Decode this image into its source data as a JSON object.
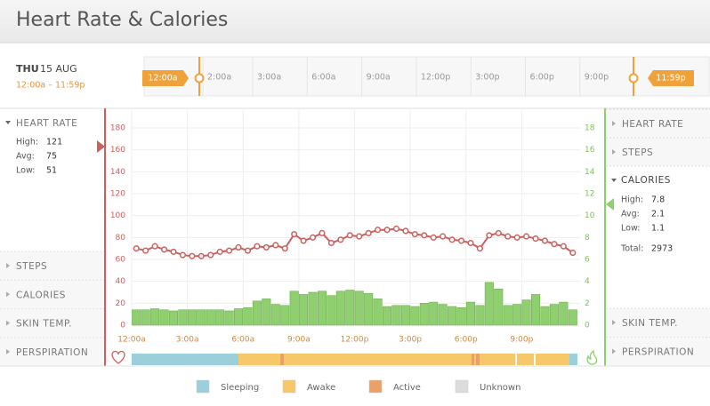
{
  "header": {
    "title": "Heart Rate & Calories"
  },
  "date": {
    "day": "THU",
    "date": "15 AUG",
    "range": "12:00a – 11:59p"
  },
  "timeline": {
    "start_handle": "12:00a",
    "end_handle": "11:59p",
    "labels": [
      "2:00a",
      "3:00a",
      "6:00a",
      "9:00a",
      "12:00p",
      "3:00p",
      "6:00p",
      "9:00p"
    ]
  },
  "left_panel": {
    "open": {
      "title": "HEART RATE",
      "stats": [
        {
          "label": "High:",
          "value": 121
        },
        {
          "label": "Avg:",
          "value": 75
        },
        {
          "label": "Low:",
          "value": 51
        }
      ]
    },
    "collapsed": [
      "STEPS",
      "CALORIES",
      "SKIN TEMP.",
      "PERSPIRATION"
    ]
  },
  "right_panel": {
    "collapsed_top": [
      "HEART RATE",
      "STEPS"
    ],
    "open": {
      "title": "CALORIES",
      "stats": [
        {
          "label": "High:",
          "value": 7.8
        },
        {
          "label": "Avg:",
          "value": 2.1
        },
        {
          "label": "Low:",
          "value": 1.1
        }
      ],
      "total_label": "Total:",
      "total": 2973
    },
    "collapsed_bottom": [
      "SKIN TEMP.",
      "PERSPIRATION"
    ]
  },
  "chart_data": {
    "type": "combo",
    "categories": [
      "12:00a",
      null,
      null,
      null,
      null,
      null,
      "3:00a",
      null,
      null,
      null,
      null,
      null,
      "6:00a",
      null,
      null,
      null,
      null,
      null,
      "9:00a",
      null,
      null,
      null,
      null,
      null,
      "12:00p",
      null,
      null,
      null,
      null,
      null,
      "3:00p",
      null,
      null,
      null,
      null,
      null,
      "6:00p",
      null,
      null,
      null,
      null,
      null,
      "9:00p",
      null,
      null,
      null,
      null,
      null
    ],
    "series": [
      {
        "color": "#c9605e",
        "axis": "y",
        "values": [
          70,
          68,
          72,
          69,
          67,
          64,
          63,
          63,
          64,
          67,
          68,
          71,
          68,
          72,
          71,
          73,
          70,
          83,
          77,
          80,
          84,
          75,
          78,
          82,
          81,
          84,
          87,
          87,
          88,
          86,
          83,
          82,
          80,
          81,
          78,
          77,
          75,
          70,
          82,
          84,
          81,
          80,
          81,
          79,
          77,
          74,
          72,
          66
        ]
      },
      {
        "color": "#8fcf6f",
        "axis": "y2",
        "values": [
          1.4,
          1.4,
          1.5,
          1.4,
          1.3,
          1.4,
          1.4,
          1.4,
          1.4,
          1.4,
          1.3,
          1.5,
          1.6,
          2.2,
          2.4,
          1.9,
          1.8,
          3.1,
          2.8,
          3.0,
          3.1,
          2.7,
          3.1,
          3.2,
          3.1,
          2.9,
          2.4,
          1.7,
          1.8,
          1.8,
          1.7,
          2.0,
          2.1,
          1.9,
          1.7,
          1.6,
          2.1,
          1.8,
          3.9,
          3.3,
          1.8,
          1.9,
          2.3,
          2.8,
          1.7,
          1.9,
          2.1,
          1.4
        ]
      }
    ],
    "ylim": [
      0,
      180
    ],
    "yticks": [
      0,
      20,
      40,
      60,
      80,
      100,
      120,
      140,
      160,
      180
    ],
    "y2lim": [
      0,
      18
    ],
    "y2ticks": [
      0,
      2,
      4,
      6,
      8,
      10,
      12,
      14,
      16,
      18
    ],
    "grid": true
  },
  "legend": [
    {
      "label": "Sleeping",
      "color": "#9ccfdc"
    },
    {
      "label": "Awake",
      "color": "#f6c86a"
    },
    {
      "label": "Active",
      "color": "#eba066"
    },
    {
      "label": "Unknown",
      "color": "#dcdcdc"
    }
  ]
}
